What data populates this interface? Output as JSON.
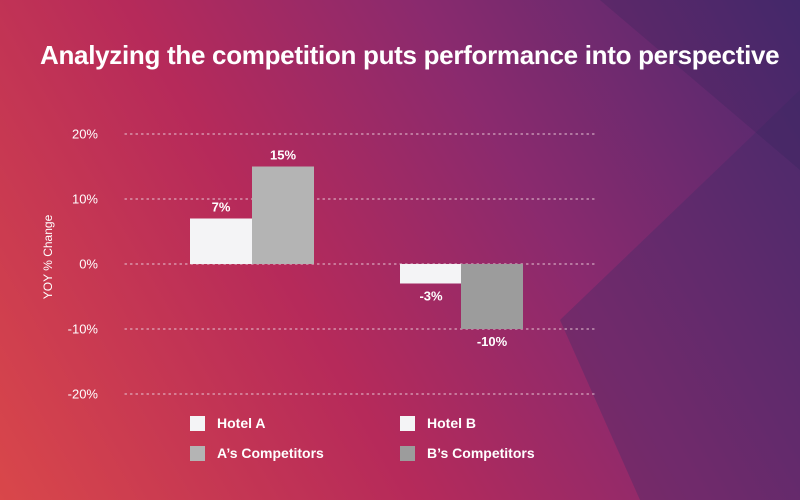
{
  "title": "Analyzing the competition puts performance into perspective",
  "colors": {
    "hotel": "#f4f4f6",
    "competitor_a": "#b4b4b4",
    "competitor_b": "#9c9c9c",
    "gridline": "#e8c9d6"
  },
  "chart_data": {
    "type": "bar",
    "categories": [
      "Hotel A",
      "Hotel B"
    ],
    "series": [
      {
        "name": "Hotel A",
        "category": "Hotel A",
        "value": 7,
        "label": "7%",
        "color": "#f4f4f6"
      },
      {
        "name": "A’s Competitors",
        "category": "Hotel A",
        "value": 15,
        "label": "15%",
        "color": "#b4b4b4"
      },
      {
        "name": "Hotel B",
        "category": "Hotel B",
        "value": -3,
        "label": "-3%",
        "color": "#f4f4f6"
      },
      {
        "name": "B’s Competitors",
        "category": "Hotel B",
        "value": -10,
        "label": "-10%",
        "color": "#9c9c9c"
      }
    ],
    "ylabel": "YOY % Change",
    "ylim": [
      -20,
      20
    ],
    "yticks": [
      20,
      10,
      0,
      -10,
      -20
    ],
    "ytick_labels": [
      "20%",
      "10%",
      "0%",
      "-10%",
      "-20%"
    ],
    "grid": true,
    "legend_position": "bottom"
  },
  "legend": [
    {
      "label": "Hotel A",
      "color": "#f4f4f6"
    },
    {
      "label": "Hotel B",
      "color": "#f4f4f6"
    },
    {
      "label": "A’s Competitors",
      "color": "#b4b4b4"
    },
    {
      "label": "B’s Competitors",
      "color": "#9c9c9c"
    }
  ]
}
